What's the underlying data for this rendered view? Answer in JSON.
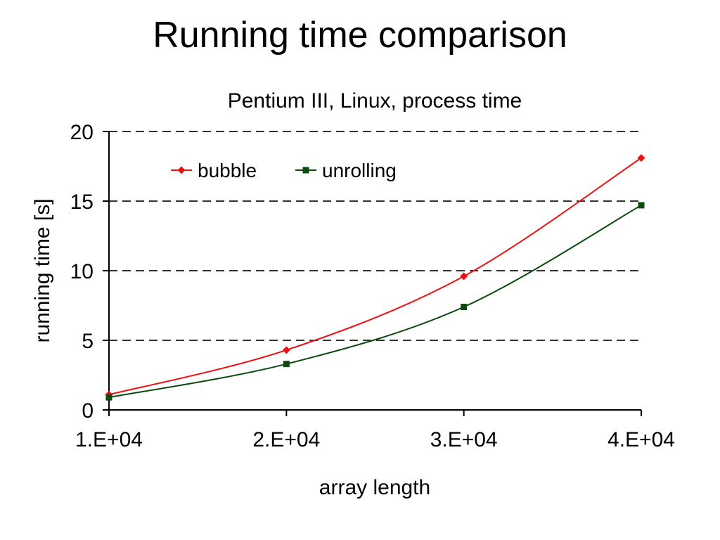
{
  "slide": {
    "title": "Running time comparison"
  },
  "chart_data": {
    "type": "line",
    "title": "Pentium III, Linux, process time",
    "xlabel": "array length",
    "ylabel": "running time [s]",
    "x": [
      10000,
      20000,
      30000,
      40000
    ],
    "x_tick_labels": [
      "1.E+04",
      "2.E+04",
      "3.E+04",
      "4.E+04"
    ],
    "xlim": [
      10000,
      40000
    ],
    "ylim": [
      0,
      20
    ],
    "y_ticks": [
      0,
      5,
      10,
      15,
      20
    ],
    "grid": "horizontal dashed",
    "legend_position": "top-left",
    "smooth": true,
    "series": [
      {
        "name": "bubble",
        "values": [
          1.1,
          4.3,
          9.6,
          18.1
        ],
        "color": "#ee1111",
        "marker": "diamond"
      },
      {
        "name": "unrolling",
        "values": [
          0.9,
          3.3,
          7.4,
          14.7
        ],
        "color": "#0d4a0d",
        "marker": "square"
      }
    ]
  }
}
